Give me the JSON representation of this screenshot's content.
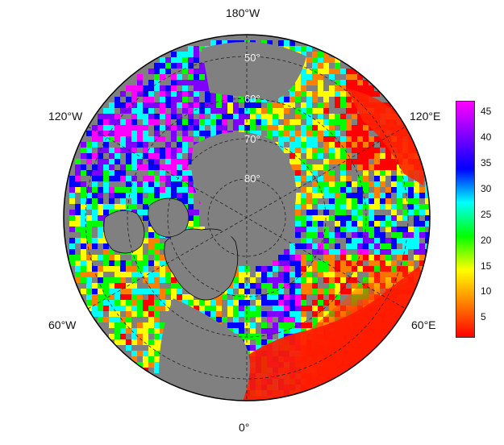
{
  "map": {
    "projection": "north-polar-stereographic",
    "background_color": "#808080",
    "land_outline_color": "#000000",
    "graticule_style": "dashed",
    "longitude_labels": {
      "top": "180°W",
      "upper_left": "120°W",
      "upper_right": "120°E",
      "lower_left": "60°W",
      "lower_right": "60°E",
      "bottom": "0°"
    },
    "latitude_labels": [
      "50°",
      "60°",
      "70°",
      "80°"
    ]
  },
  "colorbar": {
    "min": 1,
    "max": 47,
    "ticks": [
      "5",
      "10",
      "15",
      "20",
      "25",
      "30",
      "35",
      "40",
      "45"
    ],
    "colors": [
      "#ff0000",
      "#ff8000",
      "#ffff00",
      "#00ff00",
      "#00ffff",
      "#0000ff",
      "#8000ff",
      "#ff00ff"
    ]
  }
}
